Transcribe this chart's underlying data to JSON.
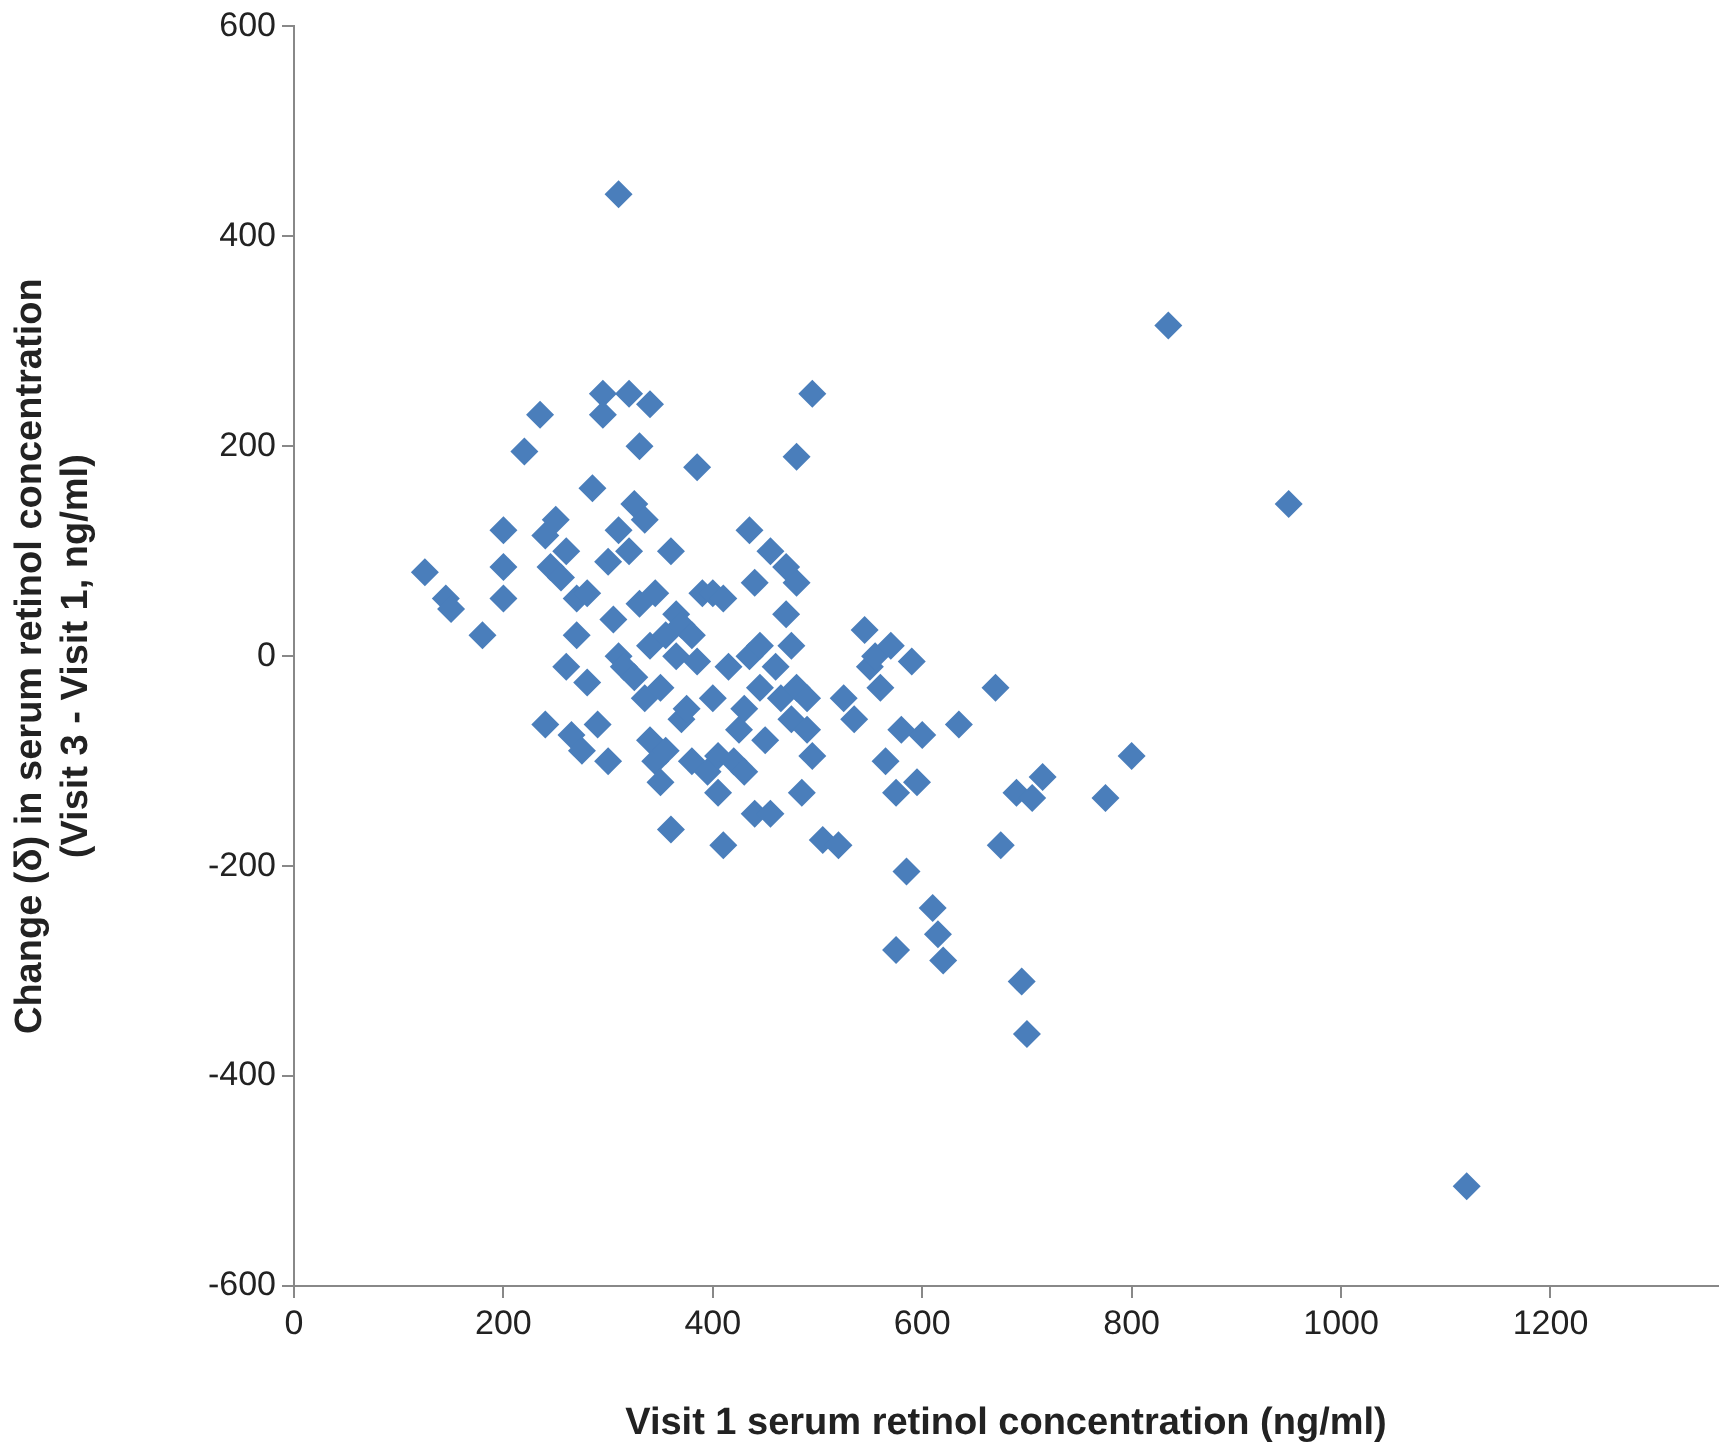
{
  "chart_data": {
    "type": "scatter",
    "xlabel": "Visit 1 serum retinol concentration (ng/ml)",
    "ylabel": "Change (δ) in serum retinol concentration\n(Visit 3 - Visit 1, ng/ml)",
    "xlim": [
      0,
      1360
    ],
    "xticks": [
      0,
      200,
      400,
      600,
      800,
      1000,
      1200
    ],
    "ylim": [
      -600,
      600
    ],
    "yticks": [
      -600,
      -400,
      -200,
      0,
      200,
      400,
      600
    ],
    "grid": false,
    "legend": false,
    "marker": "diamond",
    "series": [
      {
        "color": "#4a7ebb",
        "x": [
          125,
          145,
          150,
          180,
          200,
          200,
          200,
          220,
          235,
          240,
          240,
          245,
          250,
          255,
          260,
          260,
          265,
          270,
          270,
          275,
          280,
          280,
          285,
          290,
          295,
          295,
          300,
          300,
          305,
          310,
          310,
          310,
          315,
          320,
          320,
          325,
          325,
          330,
          330,
          335,
          335,
          340,
          340,
          340,
          345,
          345,
          350,
          350,
          355,
          355,
          360,
          360,
          365,
          365,
          370,
          370,
          375,
          380,
          380,
          385,
          385,
          390,
          395,
          400,
          400,
          405,
          405,
          410,
          410,
          415,
          420,
          425,
          430,
          430,
          435,
          435,
          440,
          440,
          445,
          445,
          450,
          455,
          455,
          460,
          465,
          470,
          470,
          475,
          475,
          480,
          480,
          480,
          485,
          490,
          490,
          495,
          495,
          505,
          520,
          525,
          535,
          545,
          550,
          555,
          560,
          565,
          570,
          575,
          575,
          580,
          585,
          590,
          595,
          600,
          610,
          615,
          620,
          635,
          670,
          675,
          690,
          695,
          700,
          705,
          715,
          775,
          800,
          835,
          950,
          1120
        ],
        "values": [
          80,
          55,
          45,
          20,
          120,
          85,
          55,
          195,
          230,
          115,
          -65,
          85,
          130,
          75,
          100,
          -10,
          -75,
          55,
          20,
          -90,
          -25,
          60,
          160,
          -65,
          250,
          230,
          -100,
          90,
          35,
          440,
          120,
          0,
          -10,
          100,
          250,
          145,
          -20,
          50,
          200,
          -40,
          130,
          240,
          10,
          -80,
          60,
          -100,
          -120,
          -30,
          20,
          -90,
          -165,
          100,
          40,
          0,
          30,
          -60,
          -50,
          20,
          -100,
          180,
          -5,
          60,
          -110,
          60,
          -40,
          -95,
          -130,
          55,
          -180,
          -10,
          -100,
          -70,
          -50,
          -110,
          120,
          0,
          70,
          -150,
          10,
          -30,
          -80,
          -150,
          100,
          -10,
          -40,
          40,
          85,
          -60,
          10,
          -30,
          70,
          190,
          -130,
          -40,
          -70,
          250,
          -95,
          -175,
          -180,
          -40,
          -60,
          25,
          -10,
          0,
          -30,
          -100,
          10,
          -130,
          -280,
          -70,
          -205,
          -5,
          -120,
          -75,
          -240,
          -265,
          -290,
          -65,
          -30,
          -180,
          -130,
          -310,
          -360,
          -135,
          -115,
          -135,
          -95,
          315,
          145,
          -505
        ]
      }
    ]
  }
}
